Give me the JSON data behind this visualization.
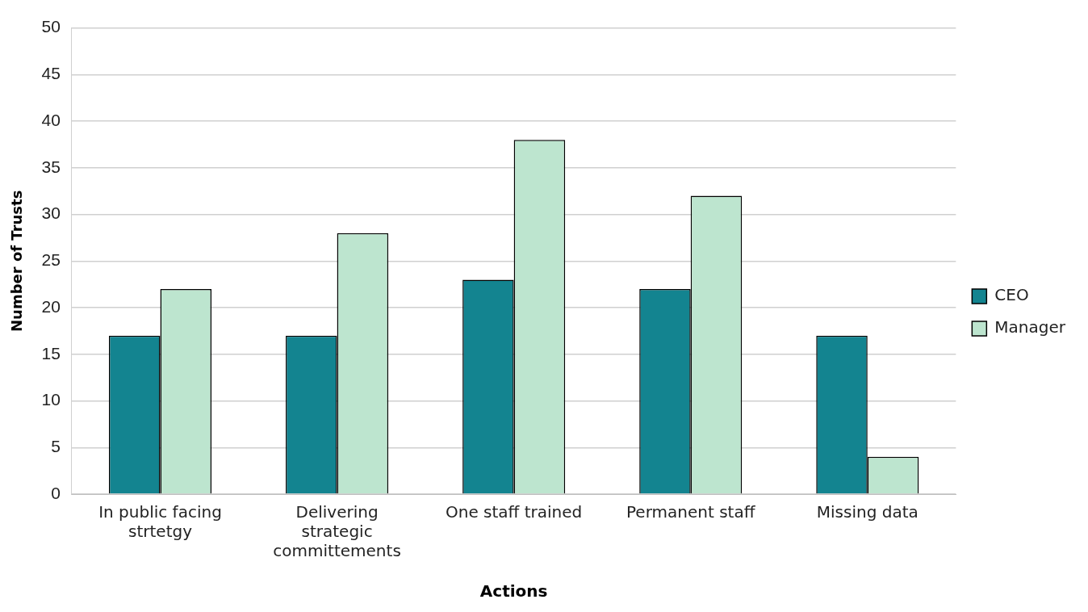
{
  "chart_data": {
    "type": "bar",
    "xlabel": "Actions",
    "ylabel": "Number of Trusts",
    "categories": [
      "In public facing strtetgy",
      "Delivering strategic committements",
      "One staff trained",
      "Permanent staff",
      "Missing data"
    ],
    "series": [
      {
        "name": "CEO",
        "color": "#138490",
        "values": [
          17,
          17,
          23,
          22,
          17
        ]
      },
      {
        "name": "Manager",
        "color": "#bde5cf",
        "values": [
          22,
          28,
          38,
          32,
          4
        ]
      }
    ],
    "ylim": [
      0,
      50
    ],
    "yticks": [
      0,
      5,
      10,
      15,
      20,
      25,
      30,
      35,
      40,
      45,
      50
    ],
    "grid": "y",
    "legend": "right"
  }
}
